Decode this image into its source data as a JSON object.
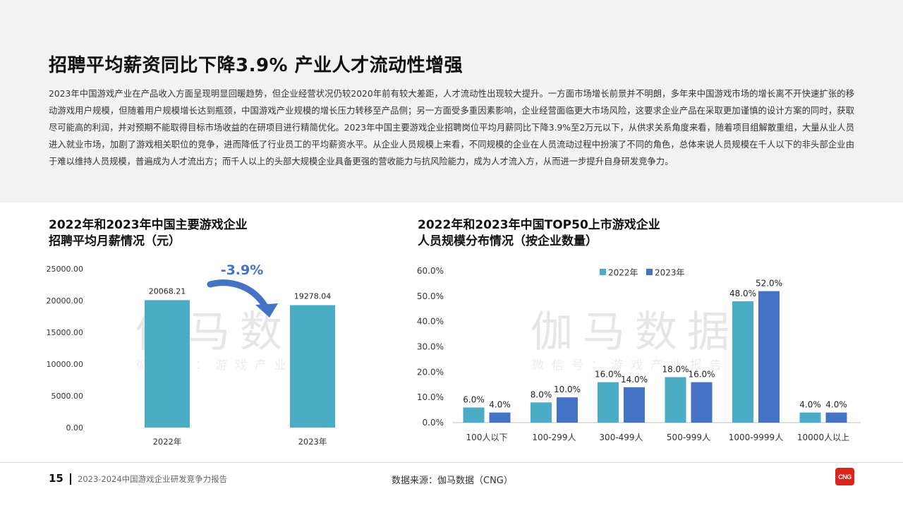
{
  "headline": "招聘平均薪资同比下降3.9% 产业人才流动性增强",
  "intro": "2023年中国游戏产业在产品收入方面呈现明显回暖趋势，但企业经营状况仍较2020年前有较大差距，人才流动性出现较大提升。一方面市场增长前景并不明朗，多年来中国游戏市场的增长离不开快速扩张的移动游戏用户规模，但随着用户规模增长达到瓶颈，中国游戏产业规模的增长压力转移至产品侧；另一方面受多重因素影响，企业经营面临更大市场风险，这要求企业产品在采取更加谨慎的设计方案的同时，获取尽可能高的利润，并对预期不能取得目标市场收益的在研项目进行精简优化。2023年中国主要游戏企业招聘岗位平均月薪同比下降3.9%至2万元以下，从供求关系角度来看，随着项目组解散重组，大量从业人员进入就业市场，加剧了游戏相关职位的竞争，进而降低了行业员工的平均薪资水平。从企业人员规模上来看，不同规模的企业在人员流动过程中扮演了不同的角色，总体来说人员规模在千人以下的非头部企业由于难以维持人员规模，普遍成为人才流出方；而千人以上的头部大规模企业具备更强的营收能力与抗风险能力，成为人才流入方，从而进一步提升自身研发竞争力。",
  "watermark": {
    "main": "伽马数据",
    "sub": "微信号：游戏产业报告"
  },
  "footer": {
    "page": "15",
    "report": "2023-2024中国游戏企业研发竞争力报告",
    "source": "数据来源：伽马数据（CNG）",
    "logo": "CNG"
  },
  "colors": {
    "bar_2022": "#4bacc6",
    "bar_2023": "#4472c4",
    "arrow": "#4472c4"
  },
  "chart_data": [
    {
      "type": "bar",
      "title_lines": [
        "2022年和2023年中国主要游戏企业",
        "招聘平均月薪情况（元）"
      ],
      "categories": [
        "2022年",
        "2023年"
      ],
      "values": [
        20068.21,
        19278.04
      ],
      "value_labels": [
        "20068.21",
        "19278.04"
      ],
      "ylim": [
        0,
        25000
      ],
      "yticks": [
        "0.00",
        "5000.00",
        "10000.00",
        "15000.00",
        "20000.00",
        "25000.00"
      ],
      "annotation": "-3.9%",
      "grid": false
    },
    {
      "type": "bar",
      "title_lines": [
        "2022年和2023年中国TOP50上市游戏企业",
        "人员规模分布情况（按企业数量）"
      ],
      "categories": [
        "100人以下",
        "100-299人",
        "300-499人",
        "500-999人",
        "1000-9999人",
        "10000人以上"
      ],
      "series": [
        {
          "name": "2022年",
          "values": [
            6.0,
            8.0,
            16.0,
            18.0,
            48.0,
            4.0
          ],
          "labels": [
            "6.0%",
            "8.0%",
            "16.0%",
            "18.0%",
            "48.0%",
            "4.0%"
          ]
        },
        {
          "name": "2023年",
          "values": [
            4.0,
            10.0,
            14.0,
            16.0,
            52.0,
            4.0
          ],
          "labels": [
            "4.0%",
            "10.0%",
            "14.0%",
            "16.0%",
            "52.0%",
            "4.0%"
          ]
        }
      ],
      "ylim": [
        0,
        60
      ],
      "yticks": [
        "0.0%",
        "10.0%",
        "20.0%",
        "30.0%",
        "40.0%",
        "50.0%",
        "60.0%"
      ],
      "legend": "top",
      "grid": false
    }
  ]
}
